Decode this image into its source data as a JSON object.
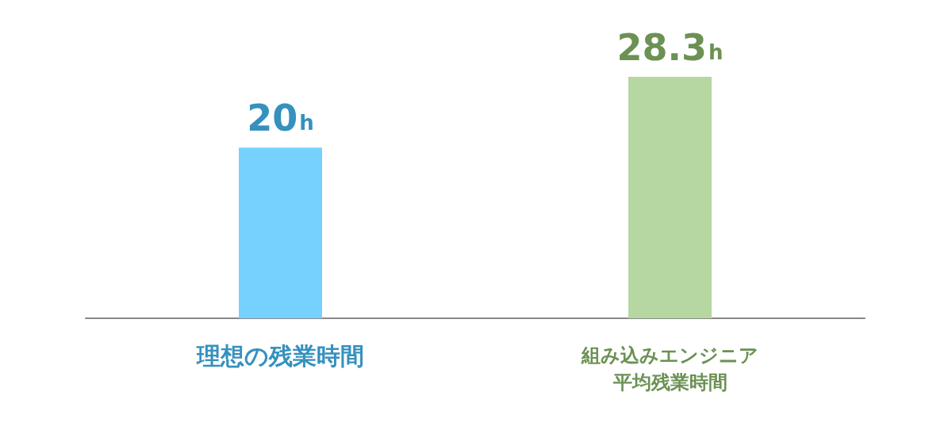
{
  "chart_data": {
    "type": "bar",
    "categories": [
      "理想の残業時間",
      "組み込みエンジニア平均残業時間"
    ],
    "values": [
      20,
      28.3
    ],
    "colors": [
      "#76d1fe",
      "#b6d7a1"
    ],
    "value_labels": [
      "20h",
      "28.3h"
    ],
    "grid": false
  }
}
